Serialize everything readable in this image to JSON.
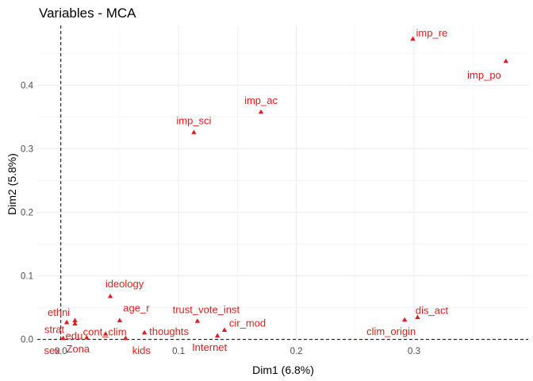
{
  "chart_data": {
    "type": "scatter",
    "title": "Variables - MCA",
    "xlabel": "Dim1 (6.8%)",
    "ylabel": "Dim2 (5.8%)",
    "xlim": [
      -0.02,
      0.397
    ],
    "ylim": [
      -0.003,
      0.494
    ],
    "x_ticks": [
      0.0,
      0.1,
      0.2,
      0.3
    ],
    "x_tick_labels": [
      "0.0",
      "0.1",
      "0.2",
      "0.3"
    ],
    "y_ticks": [
      0.0,
      0.1,
      0.2,
      0.3,
      0.4
    ],
    "y_tick_labels": [
      "0.0",
      "0.1",
      "0.2",
      "0.3",
      "0.4"
    ],
    "grid": true,
    "reference_lines": {
      "x": 0,
      "y": 0,
      "style": "dashed"
    },
    "marker": "triangle",
    "point_color": "#e41a1c",
    "points": [
      {
        "label": "imp_re",
        "x": 0.299,
        "y": 0.473
      },
      {
        "label": "imp_po",
        "x": 0.378,
        "y": 0.438
      },
      {
        "label": "imp_ac",
        "x": 0.17,
        "y": 0.358
      },
      {
        "label": "imp_sci",
        "x": 0.113,
        "y": 0.326
      },
      {
        "label": "ideology",
        "x": 0.042,
        "y": 0.068
      },
      {
        "label": "ethni",
        "x": 0.005,
        "y": 0.027
      },
      {
        "label": "age_r",
        "x": 0.05,
        "y": 0.03
      },
      {
        "label": "trust_vote_inst",
        "x": 0.116,
        "y": 0.029
      },
      {
        "label": "dis_act",
        "x": 0.303,
        "y": 0.035
      },
      {
        "label": "clim_origin",
        "x": 0.292,
        "y": 0.031
      },
      {
        "label": "strat",
        "x": 0.012,
        "y": 0.03
      },
      {
        "label": "edu",
        "x": 0.012,
        "y": 0.025
      },
      {
        "label": "cont_clim",
        "x": 0.038,
        "y": 0.009
      },
      {
        "label": "thoughts",
        "x": 0.071,
        "y": 0.011
      },
      {
        "label": "cir_mod",
        "x": 0.139,
        "y": 0.015
      },
      {
        "label": "sex",
        "x": 0.002,
        "y": 0.002
      },
      {
        "label": "Zona",
        "x": 0.022,
        "y": 0.003
      },
      {
        "label": "kids",
        "x": 0.055,
        "y": 0.002
      },
      {
        "label": "Internet",
        "x": 0.133,
        "y": 0.006
      }
    ]
  }
}
